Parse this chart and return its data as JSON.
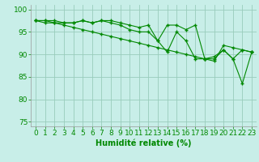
{
  "x": [
    0,
    1,
    2,
    3,
    4,
    5,
    6,
    7,
    8,
    9,
    10,
    11,
    12,
    13,
    14,
    15,
    16,
    17,
    18,
    19,
    20,
    21,
    22,
    23
  ],
  "line1": [
    97.5,
    97.5,
    97.5,
    97,
    97,
    97.5,
    97,
    97.5,
    97.5,
    97,
    96.5,
    96,
    96.5,
    93,
    96.5,
    96.5,
    95.5,
    96.5,
    89,
    89,
    91,
    89,
    83.5,
    90.5
  ],
  "line2": [
    97.5,
    97.5,
    97,
    97,
    97,
    97.5,
    97,
    97.5,
    97,
    96.5,
    95.5,
    95,
    95,
    93,
    90.5,
    95,
    93,
    89,
    89,
    89.5,
    91,
    89,
    91,
    90.5
  ],
  "line3": [
    97.5,
    97,
    97,
    96.5,
    96,
    95.5,
    95,
    94.5,
    94,
    93.5,
    93,
    92.5,
    92,
    91.5,
    91,
    90.5,
    90,
    89.5,
    89,
    88.5,
    92,
    91.5,
    91,
    90.5
  ],
  "line_color": "#008800",
  "bg_color": "#c8eee8",
  "grid_color": "#99ccbb",
  "xlabel": "Humidité relative (%)",
  "xlim": [
    -0.5,
    23.5
  ],
  "ylim": [
    74,
    101
  ],
  "yticks": [
    75,
    80,
    85,
    90,
    95,
    100
  ],
  "xticks": [
    0,
    1,
    2,
    3,
    4,
    5,
    6,
    7,
    8,
    9,
    10,
    11,
    12,
    13,
    14,
    15,
    16,
    17,
    18,
    19,
    20,
    21,
    22,
    23
  ],
  "axis_fontsize": 7,
  "tick_fontsize": 6.5
}
